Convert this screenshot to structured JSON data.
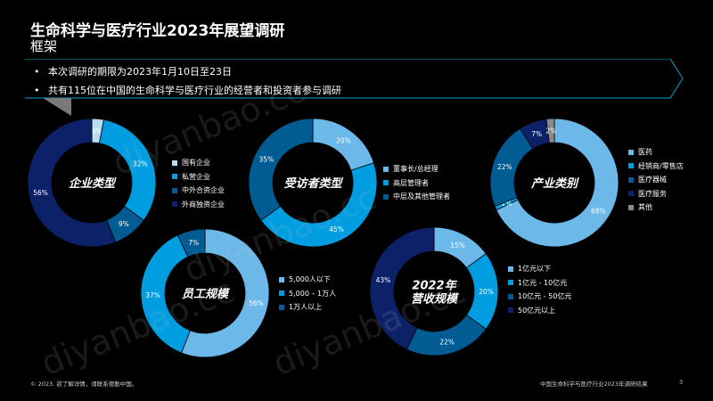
{
  "header": {
    "title": "生命科学与医疗行业2023年展望调研",
    "subtitle": "框架"
  },
  "bullets": [
    "本次调研的期限为2023年1月10日至23日",
    "共有115位在中国的生命科学与医疗行业的经营者和投资者参与调研"
  ],
  "chart_data": [
    {
      "type": "pie",
      "title": "企业类型",
      "categories": [
        "国有企业",
        "私营企业",
        "中外合资企业",
        "外商独资企业"
      ],
      "values": [
        3,
        32,
        9,
        56
      ],
      "labels": [
        "3%",
        "32%",
        "9%",
        "56%"
      ],
      "colors": [
        "#B8DCF3",
        "#009DE0",
        "#005C93",
        "#0D2169"
      ]
    },
    {
      "type": "pie",
      "title": "受访者类型",
      "categories": [
        "董事长/总经理",
        "高层管理者",
        "中层及其他管理者"
      ],
      "values": [
        20,
        45,
        35
      ],
      "labels": [
        "20%",
        "45%",
        "35%"
      ],
      "colors": [
        "#6CB8E8",
        "#009DE0",
        "#005C93"
      ]
    },
    {
      "type": "pie",
      "title": "产业类别",
      "categories": [
        "医药",
        "经销商/零售店",
        "医疗器械",
        "医疗服务",
        "其他"
      ],
      "values": [
        68,
        1,
        22,
        7,
        2
      ],
      "labels": [
        "68%",
        "1%",
        "22%",
        "7%",
        "2%"
      ],
      "colors": [
        "#6CB8E8",
        "#009DE0",
        "#005C93",
        "#0D2169",
        "#8A8A8A"
      ]
    },
    {
      "type": "pie",
      "title": "员工规模",
      "categories": [
        "5,000人以下",
        "5,000 – 1万人",
        "1万人以上"
      ],
      "values": [
        56,
        37,
        7
      ],
      "labels": [
        "56%",
        "37%",
        "7%"
      ],
      "colors": [
        "#6CB8E8",
        "#009DE0",
        "#005C93"
      ]
    },
    {
      "type": "pie",
      "title": "2022年营收规模",
      "title_lines": [
        "2022年",
        "营收规模"
      ],
      "categories": [
        "1亿元以下",
        "1亿元 - 10亿元",
        "10亿元 - 50亿元",
        "50亿元以上"
      ],
      "values": [
        15,
        20,
        22,
        43
      ],
      "labels": [
        "15%",
        "20%",
        "22%",
        "43%"
      ],
      "colors": [
        "#6CB8E8",
        "#009DE0",
        "#005C93",
        "#0D2169"
      ]
    }
  ],
  "footer": {
    "left": "© 2023. 欲了解详情，请联系德勤中国。",
    "right": "中国生命科学与医疗行业2023年调研结果",
    "page": "3"
  },
  "watermark": "diyanbao.cc"
}
